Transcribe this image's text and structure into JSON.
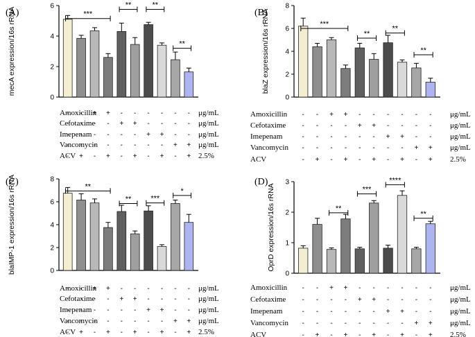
{
  "condition_rows": [
    "Amoxicillin",
    "Cefotaxime",
    "Imepenam",
    "Vancomycin",
    "ACV"
  ],
  "condition_units": [
    "μg/mL",
    "μg/mL",
    "μg/mL",
    "μg/mL",
    "2.5%"
  ],
  "condition_matrix": [
    [
      "-",
      "-",
      "+",
      "+",
      "-",
      "-",
      "-",
      "-",
      "-",
      "-"
    ],
    [
      "-",
      "-",
      "-",
      "-",
      "+",
      "+",
      "-",
      "-",
      "-",
      "-"
    ],
    [
      "-",
      "-",
      "-",
      "-",
      "-",
      "-",
      "+",
      "+",
      "-",
      "-"
    ],
    [
      "-",
      "-",
      "-",
      "-",
      "-",
      "-",
      "-",
      "-",
      "+",
      "+"
    ],
    [
      "-",
      "+",
      "-",
      "+",
      "-",
      "+",
      "-",
      "+",
      "-",
      "+"
    ]
  ],
  "colors": {
    "bars": [
      "#f3eed2",
      "#8f8f8f",
      "#b8b8b8",
      "#7d7d7d",
      "#5f5f5f",
      "#9f9f9f",
      "#4c4c4c",
      "#d9d9d9",
      "#a7a7a7",
      "#aeb4ef"
    ],
    "edge": "#222222"
  },
  "chart_data": [
    {
      "type": "bar",
      "panel_label": "(A)",
      "ylabel": "mecA expression/16s rRNA",
      "ylim": [
        0,
        6
      ],
      "yticks": [
        "0",
        "2",
        "4",
        "6"
      ],
      "values": [
        5.1,
        3.85,
        4.35,
        2.6,
        4.3,
        3.45,
        4.75,
        3.4,
        2.45,
        1.65
      ],
      "errors": [
        0.25,
        0.2,
        0.2,
        0.25,
        0.55,
        0.45,
        0.15,
        0.15,
        0.5,
        0.25
      ],
      "significance": [
        {
          "from": 0,
          "to": 3,
          "label": "***",
          "level": 5.15
        },
        {
          "from": 4,
          "to": 5,
          "label": "**",
          "level": 5.75
        },
        {
          "from": 6,
          "to": 7,
          "label": "**",
          "level": 5.75
        },
        {
          "from": 8,
          "to": 9,
          "label": "**",
          "level": 3.2
        }
      ]
    },
    {
      "type": "bar",
      "panel_label": "(B)",
      "ylabel": "blaZ expression/16s rRNA",
      "ylim": [
        0,
        8
      ],
      "yticks": [
        "0",
        "2",
        "4",
        "6",
        "8"
      ],
      "values": [
        6.2,
        4.4,
        5.0,
        2.5,
        4.3,
        3.3,
        4.75,
        3.05,
        2.55,
        1.3
      ],
      "errors": [
        0.7,
        0.3,
        0.2,
        0.3,
        0.4,
        0.5,
        0.65,
        0.2,
        0.4,
        0.35
      ],
      "significance": [
        {
          "from": 0,
          "to": 3,
          "label": "***",
          "level": 6.0
        },
        {
          "from": 4,
          "to": 5,
          "label": "**",
          "level": 5.15
        },
        {
          "from": 6,
          "to": 7,
          "label": "**",
          "level": 5.6
        },
        {
          "from": 8,
          "to": 9,
          "label": "**",
          "level": 3.7
        }
      ]
    },
    {
      "type": "bar",
      "panel_label": "(C)",
      "ylabel": "blaIMP-1 expression/16s rRNA",
      "ylim": [
        0,
        8
      ],
      "yticks": [
        "0",
        "2",
        "4",
        "6",
        "8"
      ],
      "values": [
        6.75,
        6.15,
        5.9,
        3.75,
        5.15,
        3.2,
        5.2,
        2.1,
        5.85,
        4.2
      ],
      "errors": [
        0.5,
        0.55,
        0.35,
        0.45,
        0.55,
        0.25,
        0.45,
        0.15,
        0.3,
        0.7
      ],
      "significance": [
        {
          "from": 0,
          "to": 3,
          "label": "**",
          "level": 6.95
        },
        {
          "from": 4,
          "to": 5,
          "label": "**",
          "level": 5.85
        },
        {
          "from": 6,
          "to": 7,
          "label": "***",
          "level": 5.9
        },
        {
          "from": 8,
          "to": 9,
          "label": "*",
          "level": 6.55
        }
      ]
    },
    {
      "type": "bar",
      "panel_label": "(D)",
      "ylabel": "OprD expression/16s rRNA",
      "ylim": [
        0,
        3
      ],
      "yticks": [
        "0",
        "1",
        "2",
        "3"
      ],
      "values": [
        0.82,
        1.6,
        0.78,
        1.78,
        0.8,
        2.3,
        0.82,
        2.55,
        0.8,
        1.62
      ],
      "errors": [
        0.08,
        0.2,
        0.05,
        0.15,
        0.05,
        0.08,
        0.1,
        0.15,
        0.05,
        0.08
      ],
      "significance": [
        {
          "from": 2,
          "to": 3,
          "label": "**",
          "level": 1.98
        },
        {
          "from": 4,
          "to": 5,
          "label": "***",
          "level": 2.6
        },
        {
          "from": 6,
          "to": 7,
          "label": "****",
          "level": 2.9
        },
        {
          "from": 8,
          "to": 9,
          "label": "**",
          "level": 1.8
        }
      ]
    }
  ]
}
